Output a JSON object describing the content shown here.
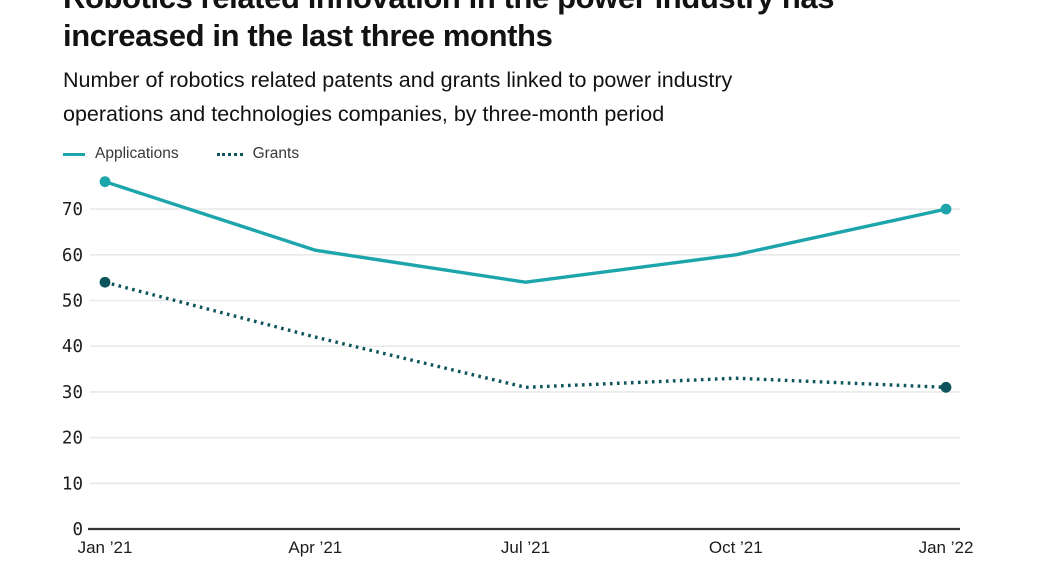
{
  "header": {
    "title_line1": "Robotics related innovation in the power industry has",
    "title_line2": "increased in the last three months",
    "subtitle_line1": "Number of robotics related patents and grants linked to power industry",
    "subtitle_line2": "operations and technologies companies, by three-month period"
  },
  "legend": [
    {
      "label": "Applications",
      "style": "solid"
    },
    {
      "label": "Grants",
      "style": "dotted"
    }
  ],
  "colors": {
    "applications": "#1da5ac",
    "grants": "#0e545c",
    "grid": "#e9e9e9",
    "axis": "#333333",
    "text": "#121212",
    "tick_label": "#1d1d1d"
  },
  "chart_data": {
    "type": "line",
    "title": "Robotics related innovation in the power industry has increased in the last three months",
    "subtitle": "Number of robotics related patents and grants linked to power industry operations and technologies companies, by three-month period",
    "categories": [
      "Jan ’21",
      "Apr ’21",
      "Jul ’21",
      "Oct ’21",
      "Jan ’22"
    ],
    "series": [
      {
        "name": "Applications",
        "values": [
          76,
          61,
          54,
          60,
          70
        ],
        "style": "solid",
        "color": "#1da5ac"
      },
      {
        "name": "Grants",
        "values": [
          54,
          42,
          31,
          33,
          31
        ],
        "style": "dotted",
        "color": "#0e545c"
      }
    ],
    "ylim": [
      0,
      78
    ],
    "yticks": [
      0,
      10,
      20,
      30,
      40,
      50,
      60,
      70
    ],
    "xlabel": "",
    "ylabel": "",
    "grid": "horizontal",
    "legend_position": "top-left",
    "markers": "endpoints-only"
  }
}
